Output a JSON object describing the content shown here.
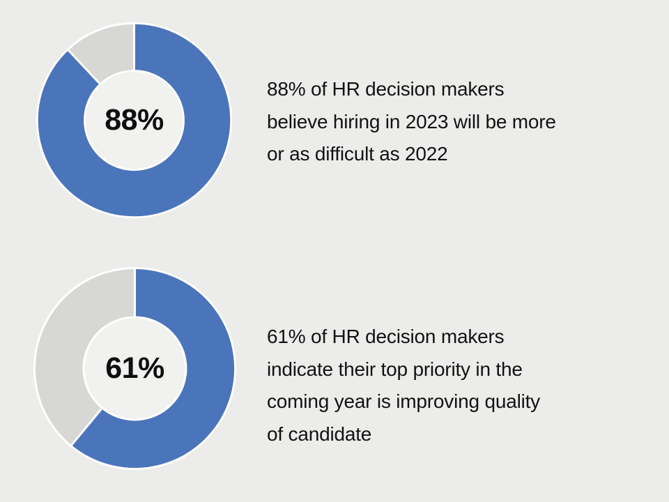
{
  "colors": {
    "background": "#ececeb",
    "accent_blue": "#4b75ba",
    "remainder_gray": "#d7d7d5",
    "donut_hole": "#f1f1ef",
    "slice_stroke": "#ffffff",
    "text": "#121212",
    "center_label_text": "#0e0e0e"
  },
  "chart_data": [
    {
      "type": "pie",
      "subtype": "donut",
      "center_label": "88%",
      "start_angle_deg": 0,
      "direction": "clockwise",
      "inner_radius_ratio": 0.51,
      "legend_position": "none",
      "slices": [
        {
          "label": "HR decision makers who believe hiring in 2023 will be more or as difficult as 2022",
          "value": 88,
          "color": "#4b75ba"
        },
        {
          "label": "remainder",
          "value": 12,
          "color": "#d7d7d5"
        }
      ],
      "caption_lines": [
        "88% of HR decision makers",
        "believe hiring in 2023 will be more",
        "or as difficult as 2022"
      ]
    },
    {
      "type": "pie",
      "subtype": "donut",
      "center_label": "61%",
      "start_angle_deg": 0,
      "direction": "clockwise",
      "inner_radius_ratio": 0.51,
      "legend_position": "none",
      "slices": [
        {
          "label": "HR decision makers whose top priority in the coming year is improving quality of candidate",
          "value": 61,
          "color": "#4b75ba"
        },
        {
          "label": "remainder",
          "value": 39,
          "color": "#d7d7d5"
        }
      ],
      "caption_lines": [
        "61% of HR decision makers",
        "indicate their top priority in the",
        "coming year is improving quality",
        "of candidate"
      ]
    }
  ]
}
